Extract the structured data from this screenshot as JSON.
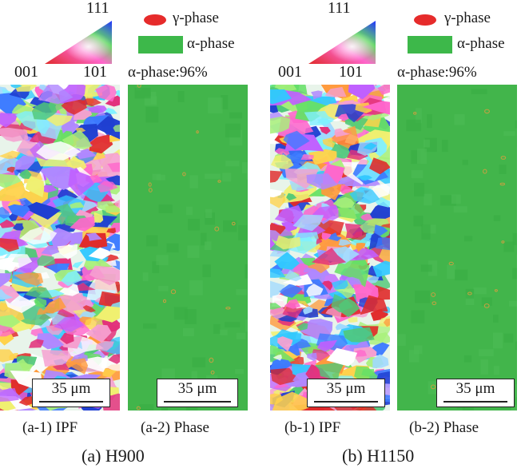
{
  "colors": {
    "gamma": "#e62b2b",
    "alpha": "#3db84a",
    "phase_bg": "#42b54b"
  },
  "triangle": {
    "top": "111",
    "left": "001",
    "right": "101"
  },
  "legend": {
    "gamma_label": "γ-phase",
    "alpha_label": "α-phase"
  },
  "fraction_label": "α-phase:96%",
  "scale_label": "35 μm",
  "panels": [
    {
      "caption": "(a-1) IPF"
    },
    {
      "caption": "(a-2) Phase"
    },
    {
      "caption": "(b-1) IPF"
    },
    {
      "caption": "(b-2) Phase"
    }
  ],
  "groups": [
    {
      "title": "(a) H900"
    },
    {
      "title": "(b) H1150"
    }
  ]
}
